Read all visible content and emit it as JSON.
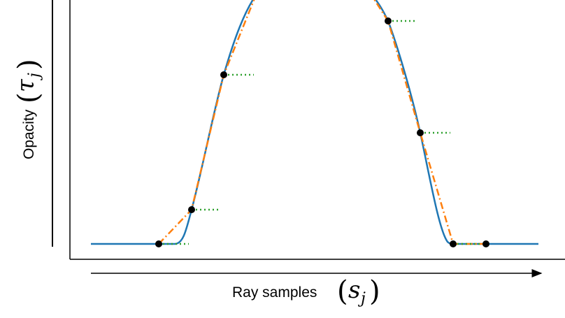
{
  "labels": {
    "y": {
      "text": "Opacity",
      "open": "(",
      "symbol": "τ",
      "subscript": "j",
      "close": ")"
    },
    "x": {
      "text": "Ray samples",
      "open": "(",
      "symbol": "s",
      "subscript": "j",
      "close": ")"
    }
  }
}
